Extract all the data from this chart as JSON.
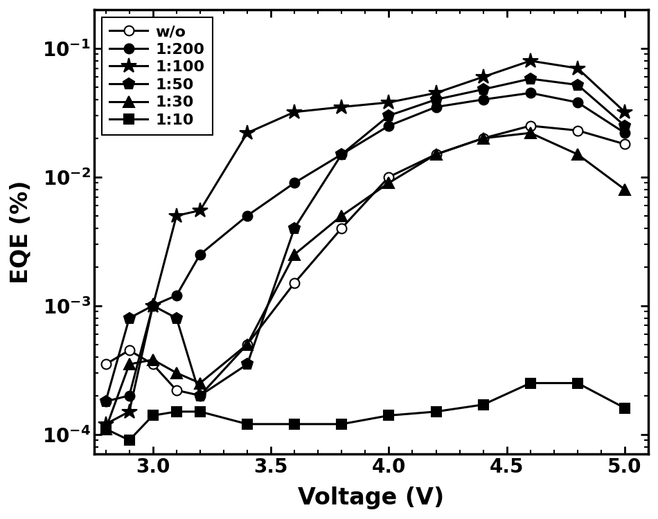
{
  "xlabel": "Voltage (V)",
  "ylabel": "EQE (%)",
  "xlim": [
    2.75,
    5.1
  ],
  "ylim_log": [
    7e-05,
    0.2
  ],
  "series": [
    {
      "label": "w/o",
      "marker": "o",
      "fillstyle": "none",
      "x": [
        2.8,
        2.9,
        3.0,
        3.1,
        3.2,
        3.4,
        3.6,
        3.8,
        4.0,
        4.2,
        4.4,
        4.6,
        4.8,
        5.0
      ],
      "y": [
        0.00035,
        0.00045,
        0.00035,
        0.00022,
        0.0002,
        0.0005,
        0.0015,
        0.004,
        0.01,
        0.015,
        0.02,
        0.025,
        0.023,
        0.018
      ]
    },
    {
      "label": "1:200",
      "marker": "o",
      "fillstyle": "full",
      "x": [
        2.8,
        2.9,
        3.0,
        3.1,
        3.2,
        3.4,
        3.6,
        3.8,
        4.0,
        4.2,
        4.4,
        4.6,
        4.8,
        5.0
      ],
      "y": [
        0.00018,
        0.0002,
        0.001,
        0.0012,
        0.0025,
        0.005,
        0.009,
        0.015,
        0.025,
        0.035,
        0.04,
        0.045,
        0.038,
        0.022
      ]
    },
    {
      "label": "1:100",
      "marker": "*",
      "fillstyle": "full",
      "x": [
        2.8,
        2.9,
        3.0,
        3.1,
        3.2,
        3.4,
        3.6,
        3.8,
        4.0,
        4.2,
        4.4,
        4.6,
        4.8,
        5.0
      ],
      "y": [
        0.00012,
        0.00015,
        0.001,
        0.005,
        0.0055,
        0.022,
        0.032,
        0.035,
        0.038,
        0.045,
        0.06,
        0.08,
        0.07,
        0.032
      ]
    },
    {
      "label": "1:50",
      "marker": "p",
      "fillstyle": "full",
      "x": [
        2.8,
        2.9,
        3.0,
        3.1,
        3.2,
        3.4,
        3.6,
        3.8,
        4.0,
        4.2,
        4.4,
        4.6,
        4.8,
        5.0
      ],
      "y": [
        0.00018,
        0.0008,
        0.001,
        0.0008,
        0.0002,
        0.00035,
        0.004,
        0.015,
        0.03,
        0.04,
        0.048,
        0.058,
        0.052,
        0.025
      ]
    },
    {
      "label": "1:30",
      "marker": "^",
      "fillstyle": "full",
      "x": [
        2.8,
        2.9,
        3.0,
        3.1,
        3.2,
        3.4,
        3.6,
        3.8,
        4.0,
        4.2,
        4.4,
        4.6,
        4.8,
        5.0
      ],
      "y": [
        0.00011,
        0.00035,
        0.00038,
        0.0003,
        0.00025,
        0.0005,
        0.0025,
        0.005,
        0.009,
        0.015,
        0.02,
        0.022,
        0.015,
        0.008
      ]
    },
    {
      "label": "1:10",
      "marker": "s",
      "fillstyle": "full",
      "x": [
        2.8,
        2.9,
        3.0,
        3.1,
        3.2,
        3.4,
        3.6,
        3.8,
        4.0,
        4.2,
        4.4,
        4.6,
        4.8,
        5.0
      ],
      "y": [
        0.00011,
        9e-05,
        0.00014,
        0.00015,
        0.00015,
        0.00012,
        0.00012,
        0.00012,
        0.00014,
        0.00015,
        0.00017,
        0.00025,
        0.00025,
        0.00016
      ]
    }
  ]
}
